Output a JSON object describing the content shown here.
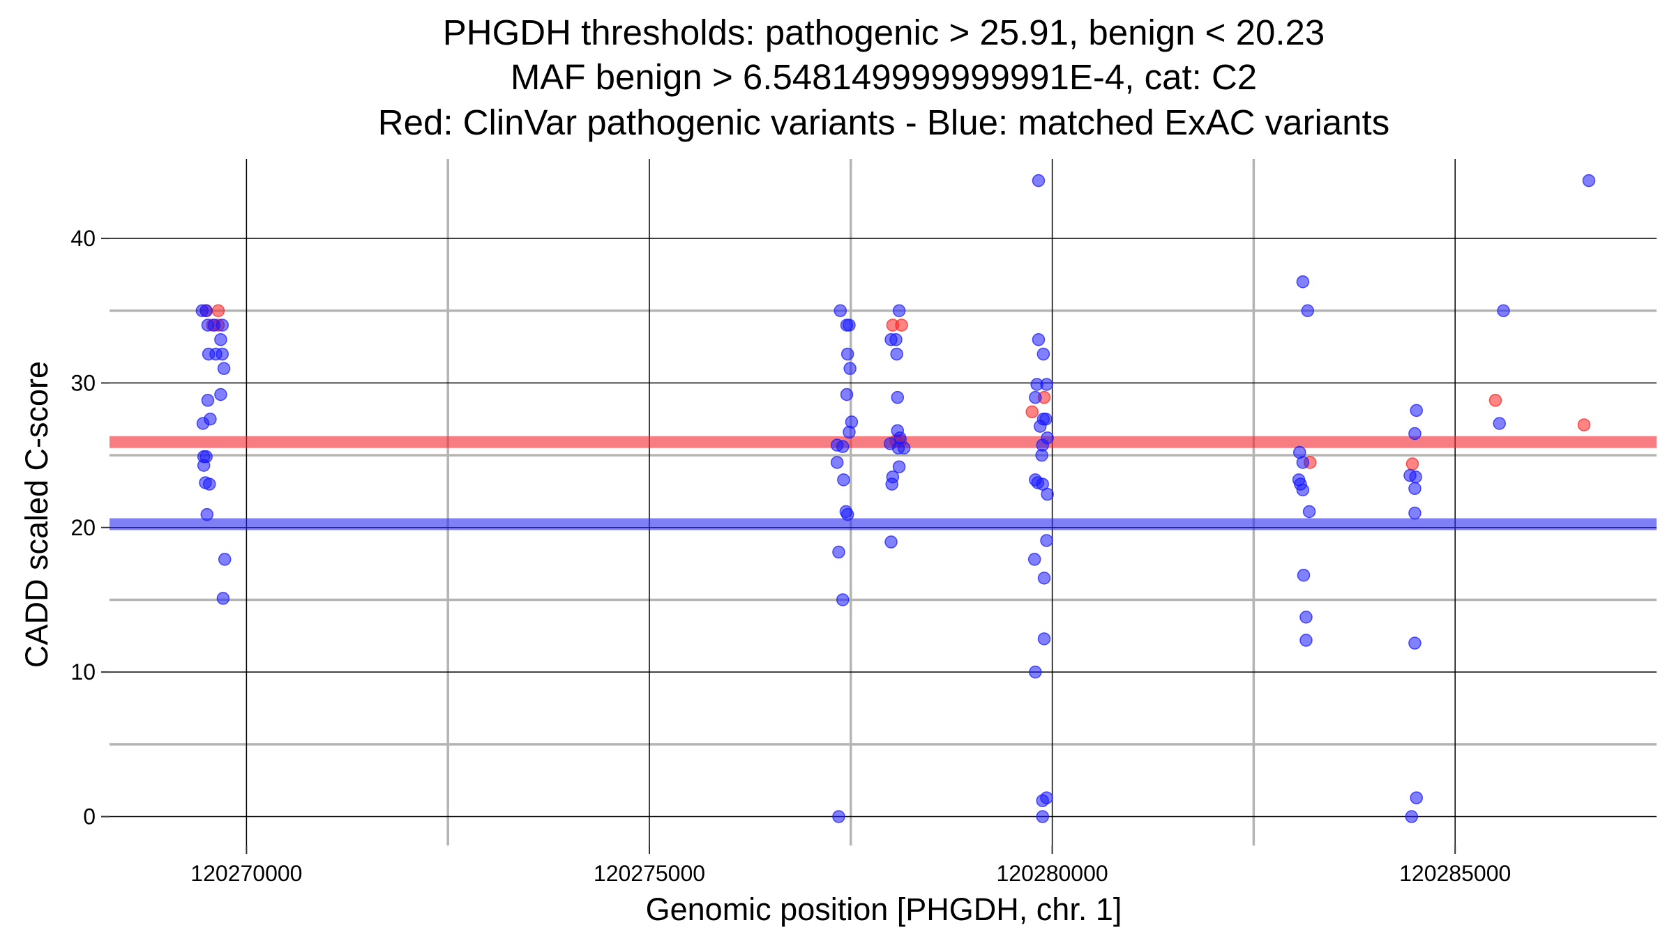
{
  "chart_data": {
    "type": "scatter",
    "title_lines": [
      "PHGDH thresholds: pathogenic > 25.91, benign < 20.23",
      "MAF benign > 6.548149999999991E-4, cat: C2",
      "Red: ClinVar pathogenic variants - Blue: matched ExAC variants"
    ],
    "xlabel": "Genomic position [PHGDH, chr. 1]",
    "ylabel": "CADD scaled C-score",
    "xlim": [
      120268300,
      120287500
    ],
    "ylim": [
      -2,
      45.5
    ],
    "x_major_ticks": [
      120270000,
      120275000,
      120280000,
      120285000
    ],
    "x_tick_labels": [
      "120270000",
      "120275000",
      "120280000",
      "120285000"
    ],
    "x_minor_ticks": [
      120272500,
      120277500,
      120282500
    ],
    "y_major_ticks": [
      0,
      10,
      20,
      30,
      40
    ],
    "y_tick_labels": [
      "0",
      "10",
      "20",
      "30",
      "40"
    ],
    "y_minor_ticks": [
      5,
      15,
      25,
      35
    ],
    "grid": true,
    "thresholds": [
      {
        "name": "pathogenic threshold",
        "value": 25.91,
        "color": "#f0262e"
      },
      {
        "name": "benign threshold",
        "value": 20.23,
        "color": "#2b2bf0"
      }
    ],
    "colors": {
      "pathogenic": "#ff2020",
      "benign": "#1a1aff",
      "major_grid": "#000000",
      "minor_grid": "#b4b4b4"
    },
    "series": [
      {
        "name": "ClinVar pathogenic variants",
        "color": "#ff2020",
        "points": [
          [
            120269500,
            35
          ],
          [
            120269650,
            35
          ],
          [
            120269580,
            34
          ],
          [
            120269650,
            34
          ],
          [
            120278020,
            34
          ],
          [
            120278130,
            34
          ],
          [
            120278060,
            26
          ],
          [
            120278120,
            26
          ],
          [
            120279750,
            28
          ],
          [
            120279900,
            29
          ],
          [
            120283200,
            24.5
          ],
          [
            120284470,
            24.4
          ],
          [
            120285500,
            28.8
          ],
          [
            120286600,
            27.1
          ]
        ]
      },
      {
        "name": "matched ExAC variants",
        "color": "#1a1aff",
        "points": [
          [
            120269450,
            35
          ],
          [
            120269500,
            35
          ],
          [
            120269520,
            34
          ],
          [
            120269600,
            34
          ],
          [
            120269700,
            34
          ],
          [
            120269530,
            32
          ],
          [
            120269620,
            32
          ],
          [
            120269700,
            32
          ],
          [
            120269680,
            33
          ],
          [
            120269720,
            31
          ],
          [
            120269520,
            28.8
          ],
          [
            120269550,
            27.5
          ],
          [
            120269460,
            27.2
          ],
          [
            120269680,
            29.2
          ],
          [
            120269470,
            24.9
          ],
          [
            120269500,
            24.9
          ],
          [
            120269470,
            24.3
          ],
          [
            120269490,
            23.1
          ],
          [
            120269540,
            23
          ],
          [
            120269510,
            20.9
          ],
          [
            120269730,
            17.8
          ],
          [
            120269710,
            15.1
          ],
          [
            120277370,
            35
          ],
          [
            120277450,
            34
          ],
          [
            120277480,
            34
          ],
          [
            120277460,
            32
          ],
          [
            120277490,
            31
          ],
          [
            120277450,
            29.2
          ],
          [
            120277510,
            27.3
          ],
          [
            120277480,
            26.6
          ],
          [
            120277330,
            25.7
          ],
          [
            120277400,
            25.6
          ],
          [
            120277330,
            24.5
          ],
          [
            120277410,
            23.3
          ],
          [
            120277440,
            21.1
          ],
          [
            120277460,
            20.9
          ],
          [
            120277350,
            18.3
          ],
          [
            120277400,
            15
          ],
          [
            120277350,
            0
          ],
          [
            120278100,
            35
          ],
          [
            120278000,
            33
          ],
          [
            120278060,
            33
          ],
          [
            120278070,
            32
          ],
          [
            120278080,
            29
          ],
          [
            120278080,
            26.7
          ],
          [
            120278110,
            26.2
          ],
          [
            120277990,
            25.8
          ],
          [
            120278090,
            25.5
          ],
          [
            120278160,
            25.5
          ],
          [
            120278100,
            24.2
          ],
          [
            120278020,
            23.5
          ],
          [
            120278010,
            23
          ],
          [
            120278000,
            19
          ],
          [
            120279830,
            44
          ],
          [
            120279830,
            33
          ],
          [
            120279890,
            32
          ],
          [
            120279810,
            29.9
          ],
          [
            120279930,
            29.9
          ],
          [
            120279790,
            29
          ],
          [
            120279890,
            27.5
          ],
          [
            120279920,
            27.5
          ],
          [
            120279850,
            27
          ],
          [
            120279940,
            26.2
          ],
          [
            120279880,
            25.7
          ],
          [
            120279870,
            25
          ],
          [
            120279790,
            23.3
          ],
          [
            120279820,
            23.1
          ],
          [
            120279880,
            23
          ],
          [
            120279940,
            22.3
          ],
          [
            120279930,
            19.1
          ],
          [
            120279780,
            17.8
          ],
          [
            120279900,
            16.5
          ],
          [
            120279900,
            12.3
          ],
          [
            120279790,
            10
          ],
          [
            120279930,
            1.3
          ],
          [
            120279880,
            1.1
          ],
          [
            120279880,
            0
          ],
          [
            120283110,
            37
          ],
          [
            120283170,
            35
          ],
          [
            120283070,
            25.2
          ],
          [
            120283110,
            24.5
          ],
          [
            120283060,
            23.3
          ],
          [
            120283080,
            23
          ],
          [
            120283110,
            22.6
          ],
          [
            120283190,
            21.1
          ],
          [
            120283120,
            16.7
          ],
          [
            120283150,
            13.8
          ],
          [
            120283150,
            12.2
          ],
          [
            120284520,
            28.1
          ],
          [
            120284500,
            26.5
          ],
          [
            120284440,
            23.6
          ],
          [
            120284510,
            23.5
          ],
          [
            120284500,
            22.7
          ],
          [
            120284500,
            21
          ],
          [
            120284500,
            12
          ],
          [
            120284520,
            1.3
          ],
          [
            120284460,
            0
          ],
          [
            120285600,
            35
          ],
          [
            120285550,
            27.2
          ],
          [
            120286660,
            44
          ]
        ]
      }
    ]
  }
}
